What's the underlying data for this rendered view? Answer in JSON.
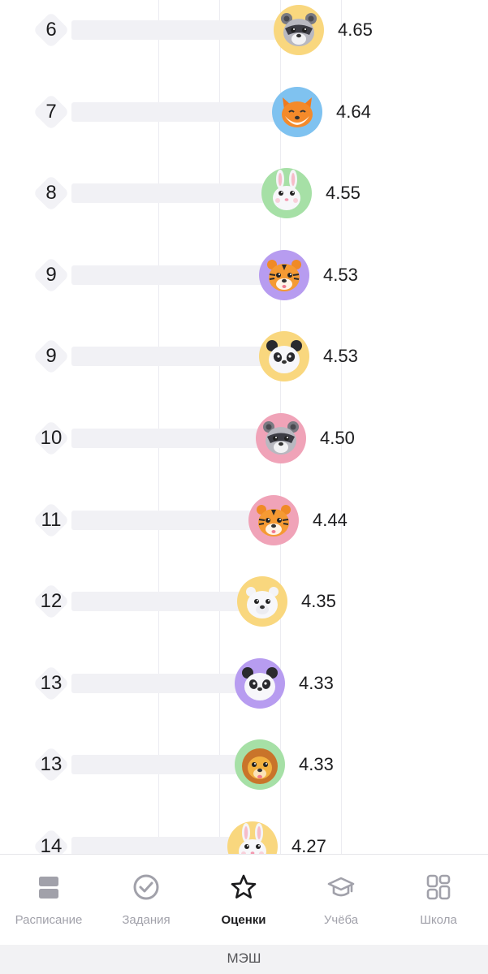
{
  "colors": {
    "bar": "#f1f1f5",
    "rank_badge": "#f2f2f6",
    "tab_inactive": "#a1a1aa",
    "tab_active": "#1c1c1e",
    "avatar_yellow": "#f9d77e",
    "avatar_blue": "#7fc2f0",
    "avatar_green": "#a6e0a6",
    "avatar_purple": "#b79cf0",
    "avatar_pink": "#f0a3b8"
  },
  "ranking": {
    "rows": [
      {
        "rank": "6",
        "score": "4.65",
        "animal": "raccoon",
        "bg": "#f9d77e"
      },
      {
        "rank": "7",
        "score": "4.64",
        "animal": "fox",
        "bg": "#7fc2f0"
      },
      {
        "rank": "8",
        "score": "4.55",
        "animal": "rabbit",
        "bg": "#a6e0a6"
      },
      {
        "rank": "9",
        "score": "4.53",
        "animal": "tiger",
        "bg": "#b79cf0"
      },
      {
        "rank": "9",
        "score": "4.53",
        "animal": "panda",
        "bg": "#f9d77e"
      },
      {
        "rank": "10",
        "score": "4.50",
        "animal": "raccoon",
        "bg": "#f0a3b8"
      },
      {
        "rank": "11",
        "score": "4.44",
        "animal": "tiger",
        "bg": "#f0a3b8"
      },
      {
        "rank": "12",
        "score": "4.35",
        "animal": "bear",
        "bg": "#f9d77e"
      },
      {
        "rank": "13",
        "score": "4.33",
        "animal": "panda",
        "bg": "#b79cf0"
      },
      {
        "rank": "13",
        "score": "4.33",
        "animal": "lion",
        "bg": "#a6e0a6"
      },
      {
        "rank": "14",
        "score": "4.27",
        "animal": "rabbit",
        "bg": "#f9d77e"
      }
    ]
  },
  "tabbar": {
    "tabs": [
      {
        "label": "Расписание",
        "icon": "schedule-icon",
        "active": false
      },
      {
        "label": "Задания",
        "icon": "check-circle-icon",
        "active": false
      },
      {
        "label": "Оценки",
        "icon": "star-icon",
        "active": true
      },
      {
        "label": "Учёба",
        "icon": "graduation-cap-icon",
        "active": false
      },
      {
        "label": "Школа",
        "icon": "grid-icon",
        "active": false
      }
    ]
  },
  "footer": {
    "text": "МЭШ"
  }
}
